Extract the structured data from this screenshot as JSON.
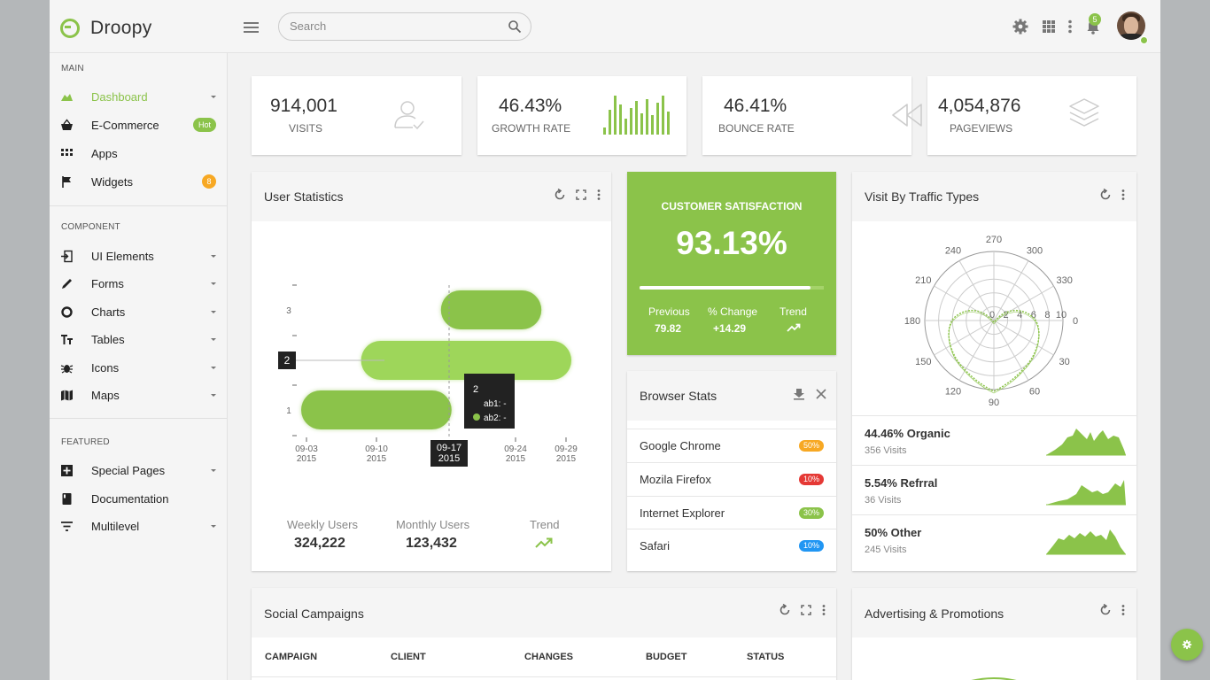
{
  "brand": {
    "name": "Droopy"
  },
  "search": {
    "placeholder": "Search"
  },
  "header": {
    "notification_count": "5"
  },
  "sidebar": {
    "sections": [
      {
        "title": "MAIN"
      },
      {
        "title": "COMPONENT"
      },
      {
        "title": "FEATURED"
      }
    ],
    "items": [
      {
        "label": "Dashboard",
        "icon": "area-chart-icon"
      },
      {
        "label": "E-Commerce",
        "icon": "basket-icon",
        "badge": "Hot"
      },
      {
        "label": "Apps",
        "icon": "grid-icon"
      },
      {
        "label": "Widgets",
        "icon": "flag-icon",
        "badge": "8"
      },
      {
        "label": "UI Elements",
        "icon": "login-icon"
      },
      {
        "label": "Forms",
        "icon": "pencil-icon"
      },
      {
        "label": "Charts",
        "icon": "donut-icon"
      },
      {
        "label": "Tables",
        "icon": "text-icon"
      },
      {
        "label": "Icons",
        "icon": "bug-icon"
      },
      {
        "label": "Maps",
        "icon": "map-icon"
      },
      {
        "label": "Special Pages",
        "icon": "plus-box-icon"
      },
      {
        "label": "Documentation",
        "icon": "book-icon"
      },
      {
        "label": "Multilevel",
        "icon": "filter-icon"
      }
    ]
  },
  "stats": [
    {
      "value": "914,001",
      "label": "VISITS",
      "icon": "user-check-icon"
    },
    {
      "value": "46.43%",
      "label": "GROWTH RATE",
      "icon": "bar-sparkline-icon"
    },
    {
      "value": "46.41%",
      "label": "BOUNCE RATE",
      "icon": "rewind-icon"
    },
    {
      "value": "4,054,876",
      "label": "PAGEVIEWS",
      "icon": "layers-icon"
    }
  ],
  "user_statistics": {
    "title": "User Statistics",
    "summary": [
      {
        "label": "Weekly Users",
        "value": "324,222"
      },
      {
        "label": "Monthly Users",
        "value": "123,432"
      },
      {
        "label": "Trend",
        "value": ""
      }
    ],
    "tooltip": {
      "title": "2",
      "line1": "ab1: -",
      "line2": "ab2: -"
    },
    "crosshair": {
      "y_label": "2",
      "x_line1": "09-17",
      "x_line2": "2015"
    }
  },
  "chart_data": {
    "type": "bar",
    "orientation": "horizontal",
    "y_categories": [
      "1",
      "2",
      "3"
    ],
    "x_ticks": [
      {
        "line1": "09-03",
        "line2": "2015"
      },
      {
        "line1": "09-10",
        "line2": "2015"
      },
      {
        "line1": "09-17",
        "line2": "2015"
      },
      {
        "line1": "09-24",
        "line2": "2015"
      },
      {
        "line1": "09-29",
        "line2": "2015"
      }
    ],
    "series": [
      {
        "name": "ab1",
        "values": [
          [
            0,
            0
          ],
          [
            0,
            0
          ],
          [
            0,
            0
          ]
        ]
      },
      {
        "name": "ab2",
        "values": [
          [
            0,
            0
          ],
          [
            0,
            0
          ],
          [
            0,
            0
          ]
        ]
      }
    ],
    "bars": [
      {
        "category": "1",
        "start": "2015-09-03",
        "end": "2015-09-17"
      },
      {
        "category": "2",
        "start": "2015-09-09",
        "end": "2015-09-29"
      },
      {
        "category": "3",
        "start": "2015-09-17",
        "end": "2015-09-26"
      }
    ],
    "colors": [
      "#8bc34a",
      "#9ed65a"
    ]
  },
  "customer_satisfaction": {
    "title": "CUSTOMER SATISFACTION",
    "value": "93.13%",
    "progress": 0.93,
    "stats": [
      {
        "label": "Previous",
        "value": "79.82"
      },
      {
        "label": "% Change",
        "value": "+14.29"
      },
      {
        "label": "Trend",
        "value": ""
      }
    ]
  },
  "browser_stats": {
    "title": "Browser Stats",
    "rows": [
      {
        "name": "Google Chrome",
        "pct": "50%",
        "color": "#f7a823"
      },
      {
        "name": "Mozila Firefox",
        "pct": "10%",
        "color": "#e53935"
      },
      {
        "name": "Internet Explorer",
        "pct": "30%",
        "color": "#8bc34a"
      },
      {
        "name": "Safari",
        "pct": "10%",
        "color": "#2196f3"
      }
    ]
  },
  "traffic": {
    "title": "Visit By Traffic Types",
    "polar": {
      "angle_labels": [
        "270",
        "300",
        "330",
        "0",
        "30",
        "60",
        "90",
        "120",
        "150",
        "180",
        "210",
        "240"
      ],
      "radial_labels": [
        "0",
        "2",
        "4",
        "6",
        "8",
        "10"
      ]
    },
    "rows": [
      {
        "title": "44.46% Organic",
        "sub": "356 Visits"
      },
      {
        "title": "5.54% Refrral",
        "sub": "36 Visits"
      },
      {
        "title": "50% Other",
        "sub": "245 Visits"
      }
    ]
  },
  "social_campaigns": {
    "title": "Social Campaigns",
    "columns": [
      "CAMPAIGN",
      "CLIENT",
      "CHANGES",
      "BUDGET",
      "STATUS"
    ]
  },
  "advertising": {
    "title": "Advertising & Promotions"
  },
  "theme": {
    "accent": "#8bc34a",
    "bg": "#f2f2f2"
  }
}
